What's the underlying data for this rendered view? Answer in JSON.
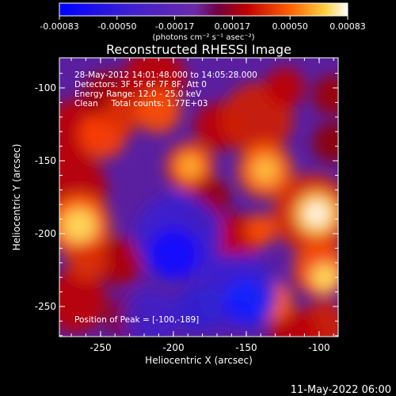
{
  "colorbar": {
    "tick_labels": [
      "-0.00083",
      "-0.00050",
      "-0.00017",
      "0.00017",
      "0.00050",
      "0.00083"
    ],
    "units_label": "(photons cm⁻² s⁻¹ asec⁻²)",
    "range": [
      -0.00083,
      0.00083
    ]
  },
  "plot": {
    "title": "Reconstructed RHESSI Image",
    "xlabel": "Heliocentric X (arcsec)",
    "ylabel": "Heliocentric Y (arcsec)",
    "x_ticks": [
      "-250",
      "-200",
      "-150",
      "-100"
    ],
    "y_ticks": [
      "-100",
      "-150",
      "-200",
      "-250"
    ],
    "x_range": [
      -280,
      -88
    ],
    "y_range": [
      -272,
      -80
    ]
  },
  "annotations": {
    "time_range": "28-May-2012 14:01:48.000 to 14:05:28.000",
    "detectors": "Detectors: 3F 5F 6F 7F 8F, Att 0",
    "energy_range": "Energy Range: 12.0 - 25.0 keV",
    "method_counts": "Clean     Total counts: 1.77E+03",
    "peak_position": "Position of Peak = [-100,-189]"
  },
  "footer": {
    "date": "11-May-2022 06:00"
  },
  "colors": {
    "background": "#000000",
    "text": "#ffffff",
    "colormap": [
      "#0000ff",
      "#3a1fd0",
      "#6a2aa8",
      "#7a1060",
      "#c00000",
      "#ff5000",
      "#ffa000",
      "#ffe060",
      "#ffffff"
    ]
  }
}
